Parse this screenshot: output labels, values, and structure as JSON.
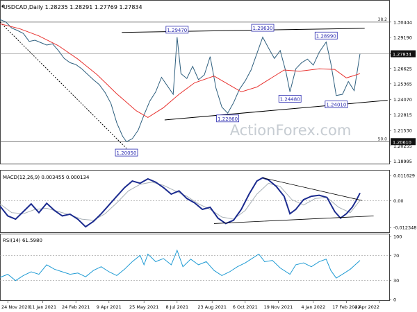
{
  "chart_data": {
    "type": "line",
    "symbol_header": "USDCAD,Daily  1.28235  1.28291  1.27769  1.27834",
    "watermark": "ActionForex.com",
    "colors": {
      "price": "#2e5f7e",
      "sma": "#e8322f",
      "macd": "#1b2b8f",
      "signal": "#a9b1b7",
      "rsi": "#1f9bd4",
      "trendline": "#000000",
      "box_border": "#2a2ab0",
      "box_text": "#2a2ab0",
      "current_label_bg": "#111111"
    },
    "price_panel": {
      "ylim": [
        1.188,
        1.318
      ],
      "y_ticks": [
        "1.30444",
        "1.29190",
        "1.27834",
        "1.26625",
        "1.25365",
        "1.24070",
        "1.22815",
        "1.21530",
        "1.20255",
        "1.18995"
      ],
      "current_price_label": "1.27834",
      "fib_levels": [
        {
          "label": "38.2",
          "value": 1.3044
        },
        {
          "label": "50.0",
          "value": 1.2061
        }
      ],
      "fib_value_label": "1.20610",
      "annotations": [
        {
          "label": "1.29470",
          "x": 0.455,
          "value": 1.2947
        },
        {
          "label": "1.29630",
          "x": 0.675,
          "value": 1.2963
        },
        {
          "label": "1.28990",
          "x": 0.838,
          "value": 1.2899
        },
        {
          "label": "1.24480",
          "x": 0.745,
          "value": 1.2448
        },
        {
          "label": "1.24010",
          "x": 0.864,
          "value": 1.2401
        },
        {
          "label": "1.22860",
          "x": 0.585,
          "value": 1.2286
        },
        {
          "label": "1.20050",
          "x": 0.325,
          "value": 1.2005
        }
      ],
      "trendlines": [
        {
          "x1": 0.313,
          "y1": 1.2959,
          "x2": 0.937,
          "y2": 1.2993
        },
        {
          "x1": 0.423,
          "y1": 1.2239,
          "x2": 0.996,
          "y2": 1.2401
        },
        {
          "x1": 0.0,
          "y1": 1.3044,
          "x2": 0.325,
          "y2": 1.2005,
          "dashed": true
        }
      ],
      "close": [
        [
          0.0,
          1.3065
        ],
        [
          0.015,
          1.3045
        ],
        [
          0.03,
          1.2995
        ],
        [
          0.045,
          1.2975
        ],
        [
          0.06,
          1.295
        ],
        [
          0.075,
          1.2885
        ],
        [
          0.09,
          1.2895
        ],
        [
          0.105,
          1.2875
        ],
        [
          0.12,
          1.2855
        ],
        [
          0.135,
          1.2865
        ],
        [
          0.15,
          1.281
        ],
        [
          0.165,
          1.2745
        ],
        [
          0.18,
          1.271
        ],
        [
          0.195,
          1.2695
        ],
        [
          0.21,
          1.266
        ],
        [
          0.225,
          1.2615
        ],
        [
          0.24,
          1.257
        ],
        [
          0.255,
          1.253
        ],
        [
          0.27,
          1.2465
        ],
        [
          0.285,
          1.2375
        ],
        [
          0.3,
          1.2215
        ],
        [
          0.315,
          1.2105
        ],
        [
          0.325,
          1.206
        ],
        [
          0.34,
          1.2085
        ],
        [
          0.355,
          1.2155
        ],
        [
          0.37,
          1.228
        ],
        [
          0.385,
          1.2395
        ],
        [
          0.4,
          1.247
        ],
        [
          0.415,
          1.259
        ],
        [
          0.43,
          1.252
        ],
        [
          0.445,
          1.245
        ],
        [
          0.455,
          1.292
        ],
        [
          0.465,
          1.262
        ],
        [
          0.48,
          1.258
        ],
        [
          0.495,
          1.268
        ],
        [
          0.51,
          1.257
        ],
        [
          0.525,
          1.261
        ],
        [
          0.54,
          1.276
        ],
        [
          0.555,
          1.25
        ],
        [
          0.57,
          1.2345
        ],
        [
          0.585,
          1.2295
        ],
        [
          0.6,
          1.238
        ],
        [
          0.615,
          1.249
        ],
        [
          0.63,
          1.256
        ],
        [
          0.645,
          1.265
        ],
        [
          0.66,
          1.2785
        ],
        [
          0.675,
          1.292
        ],
        [
          0.69,
          1.283
        ],
        [
          0.705,
          1.2745
        ],
        [
          0.72,
          1.281
        ],
        [
          0.735,
          1.263
        ],
        [
          0.745,
          1.247
        ],
        [
          0.76,
          1.266
        ],
        [
          0.775,
          1.271
        ],
        [
          0.79,
          1.274
        ],
        [
          0.805,
          1.269
        ],
        [
          0.82,
          1.2795
        ],
        [
          0.838,
          1.288
        ],
        [
          0.85,
          1.2705
        ],
        [
          0.864,
          1.244
        ],
        [
          0.88,
          1.245
        ],
        [
          0.895,
          1.2555
        ],
        [
          0.91,
          1.248
        ],
        [
          0.925,
          1.2783
        ]
      ],
      "sma": [
        [
          0.0,
          1.303
        ],
        [
          0.05,
          1.299
        ],
        [
          0.1,
          1.293
        ],
        [
          0.15,
          1.285
        ],
        [
          0.2,
          1.274
        ],
        [
          0.25,
          1.261
        ],
        [
          0.3,
          1.2455
        ],
        [
          0.35,
          1.2315
        ],
        [
          0.38,
          1.226
        ],
        [
          0.42,
          1.234
        ],
        [
          0.46,
          1.245
        ],
        [
          0.5,
          1.2545
        ],
        [
          0.55,
          1.26
        ],
        [
          0.58,
          1.2545
        ],
        [
          0.62,
          1.247
        ],
        [
          0.66,
          1.251
        ],
        [
          0.7,
          1.259
        ],
        [
          0.73,
          1.265
        ],
        [
          0.77,
          1.264
        ],
        [
          0.82,
          1.266
        ],
        [
          0.86,
          1.2655
        ],
        [
          0.89,
          1.2585
        ],
        [
          0.925,
          1.262
        ]
      ]
    },
    "macd_panel": {
      "label": "MACD(12,26,9) 0.003455 0.000134",
      "ylim": [
        -0.0145,
        0.0135
      ],
      "y_ticks": [
        "0.011629",
        "0.00",
        "-0.012348"
      ],
      "macd": [
        [
          0.0,
          -0.0025
        ],
        [
          0.02,
          -0.007
        ],
        [
          0.04,
          -0.0085
        ],
        [
          0.06,
          -0.005
        ],
        [
          0.08,
          -0.0015
        ],
        [
          0.1,
          -0.0055
        ],
        [
          0.12,
          -0.0012
        ],
        [
          0.14,
          -0.0045
        ],
        [
          0.16,
          -0.007
        ],
        [
          0.18,
          -0.0062
        ],
        [
          0.2,
          -0.0085
        ],
        [
          0.22,
          -0.012
        ],
        [
          0.24,
          -0.0095
        ],
        [
          0.26,
          -0.006
        ],
        [
          0.28,
          -0.002
        ],
        [
          0.3,
          0.002
        ],
        [
          0.32,
          0.006
        ],
        [
          0.34,
          0.009
        ],
        [
          0.36,
          0.008
        ],
        [
          0.38,
          0.01
        ],
        [
          0.4,
          0.0085
        ],
        [
          0.42,
          0.006
        ],
        [
          0.44,
          0.003
        ],
        [
          0.46,
          0.0045
        ],
        [
          0.48,
          0.001
        ],
        [
          0.5,
          -0.001
        ],
        [
          0.52,
          -0.004
        ],
        [
          0.54,
          -0.003
        ],
        [
          0.56,
          -0.008
        ],
        [
          0.58,
          -0.0105
        ],
        [
          0.6,
          -0.009
        ],
        [
          0.62,
          -0.004
        ],
        [
          0.64,
          0.003
        ],
        [
          0.66,
          0.009
        ],
        [
          0.675,
          0.0105
        ],
        [
          0.69,
          0.0095
        ],
        [
          0.71,
          0.0065
        ],
        [
          0.73,
          0.002
        ],
        [
          0.745,
          -0.006
        ],
        [
          0.76,
          -0.004
        ],
        [
          0.78,
          0.0005
        ],
        [
          0.8,
          0.002
        ],
        [
          0.82,
          0.0025
        ],
        [
          0.84,
          0.0015
        ],
        [
          0.86,
          -0.005
        ],
        [
          0.875,
          -0.008
        ],
        [
          0.89,
          -0.006
        ],
        [
          0.905,
          -0.003
        ],
        [
          0.915,
          0.0
        ],
        [
          0.925,
          0.0035
        ]
      ],
      "signal": [
        [
          0.0,
          -0.0015
        ],
        [
          0.03,
          -0.0055
        ],
        [
          0.06,
          -0.006
        ],
        [
          0.09,
          -0.004
        ],
        [
          0.12,
          -0.0035
        ],
        [
          0.15,
          -0.005
        ],
        [
          0.18,
          -0.0065
        ],
        [
          0.21,
          -0.0085
        ],
        [
          0.24,
          -0.009
        ],
        [
          0.27,
          -0.006
        ],
        [
          0.3,
          -0.001
        ],
        [
          0.33,
          0.0045
        ],
        [
          0.36,
          0.0075
        ],
        [
          0.39,
          0.0085
        ],
        [
          0.42,
          0.007
        ],
        [
          0.45,
          0.0045
        ],
        [
          0.48,
          0.002
        ],
        [
          0.51,
          -0.0015
        ],
        [
          0.54,
          -0.004
        ],
        [
          0.57,
          -0.0075
        ],
        [
          0.6,
          -0.0085
        ],
        [
          0.63,
          -0.0045
        ],
        [
          0.66,
          0.003
        ],
        [
          0.69,
          0.008
        ],
        [
          0.72,
          0.0065
        ],
        [
          0.75,
          0.0005
        ],
        [
          0.78,
          -0.002
        ],
        [
          0.81,
          0.001
        ],
        [
          0.84,
          0.0015
        ],
        [
          0.87,
          -0.003
        ],
        [
          0.9,
          -0.0055
        ],
        [
          0.925,
          0.0001
        ]
      ],
      "trendlines": [
        {
          "x1": 0.675,
          "y1": 0.0105,
          "x2": 0.93,
          "y2": 0.0001
        },
        {
          "x1": 0.55,
          "y1": -0.0105,
          "x2": 0.96,
          "y2": -0.007
        }
      ]
    },
    "rsi_panel": {
      "label": "RSI(14) 61.5980",
      "ylim": [
        0,
        100
      ],
      "y_ticks": [
        {
          "label": "100",
          "value": 100
        },
        {
          "label": "70",
          "value": 70
        },
        {
          "label": "30",
          "value": 30
        },
        {
          "label": "0",
          "value": 0
        }
      ],
      "values": [
        [
          0.0,
          35
        ],
        [
          0.02,
          40
        ],
        [
          0.04,
          30
        ],
        [
          0.06,
          38
        ],
        [
          0.08,
          44
        ],
        [
          0.1,
          40
        ],
        [
          0.12,
          55
        ],
        [
          0.14,
          48
        ],
        [
          0.16,
          44
        ],
        [
          0.18,
          40
        ],
        [
          0.2,
          42
        ],
        [
          0.22,
          36
        ],
        [
          0.24,
          46
        ],
        [
          0.26,
          52
        ],
        [
          0.28,
          44
        ],
        [
          0.3,
          38
        ],
        [
          0.32,
          48
        ],
        [
          0.34,
          60
        ],
        [
          0.36,
          70
        ],
        [
          0.37,
          55
        ],
        [
          0.38,
          72
        ],
        [
          0.4,
          60
        ],
        [
          0.42,
          65
        ],
        [
          0.44,
          55
        ],
        [
          0.455,
          78
        ],
        [
          0.47,
          52
        ],
        [
          0.49,
          64
        ],
        [
          0.51,
          55
        ],
        [
          0.53,
          60
        ],
        [
          0.55,
          46
        ],
        [
          0.57,
          38
        ],
        [
          0.59,
          44
        ],
        [
          0.61,
          52
        ],
        [
          0.63,
          58
        ],
        [
          0.65,
          66
        ],
        [
          0.665,
          72
        ],
        [
          0.68,
          60
        ],
        [
          0.7,
          62
        ],
        [
          0.72,
          50
        ],
        [
          0.745,
          40
        ],
        [
          0.76,
          55
        ],
        [
          0.78,
          58
        ],
        [
          0.8,
          52
        ],
        [
          0.82,
          60
        ],
        [
          0.838,
          64
        ],
        [
          0.85,
          46
        ],
        [
          0.864,
          34
        ],
        [
          0.88,
          40
        ],
        [
          0.9,
          48
        ],
        [
          0.925,
          62
        ]
      ]
    },
    "x_axis": {
      "labels": [
        {
          "label": "24 Nov 2020",
          "x": 0.02
        },
        {
          "label": "11 Jan 2021",
          "x": 0.11
        },
        {
          "label": "24 Feb 2021",
          "x": 0.195
        },
        {
          "label": "9 Apr 2021",
          "x": 0.28
        },
        {
          "label": "25 May 2021",
          "x": 0.37
        },
        {
          "label": "8 Jul 2021",
          "x": 0.455
        },
        {
          "label": "23 Aug 2021",
          "x": 0.545
        },
        {
          "label": "6 Oct 2021",
          "x": 0.63
        },
        {
          "label": "19 Nov 2021",
          "x": 0.715
        },
        {
          "label": "4 Jan 2022",
          "x": 0.805
        },
        {
          "label": "17 Feb 2022",
          "x": 0.89
        },
        {
          "label": "4 Apr 2022",
          "x": 0.975
        }
      ]
    }
  }
}
